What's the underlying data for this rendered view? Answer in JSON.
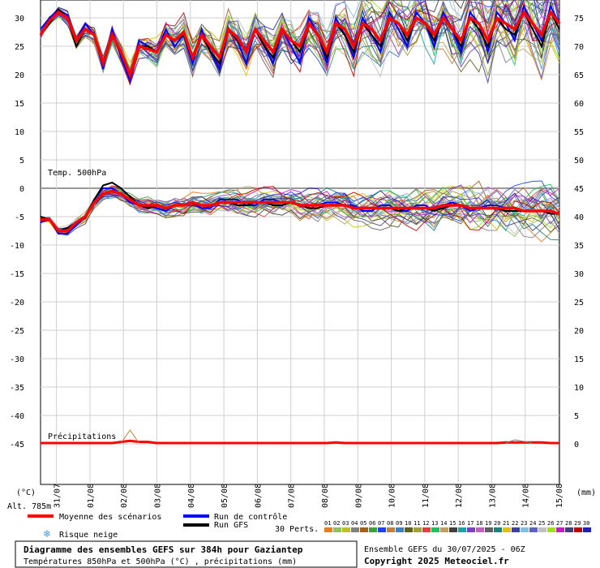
{
  "chart_data": {
    "type": "line",
    "left_axis": {
      "unit_label": "(°C)",
      "ticks": [
        30,
        25,
        20,
        15,
        10,
        5,
        0,
        -5,
        -10,
        -15,
        -20,
        -25,
        -30,
        -35,
        -40,
        -45
      ],
      "range": [
        -50,
        33
      ]
    },
    "right_axis": {
      "unit_label": "(mm)",
      "ticks": [
        75,
        70,
        65,
        60,
        55,
        50,
        45,
        40,
        35,
        30,
        25,
        20,
        15,
        10,
        5,
        0
      ]
    },
    "x_ticks": [
      "31/07",
      "01/08",
      "02/08",
      "03/08",
      "04/08",
      "05/08",
      "06/08",
      "07/08",
      "08/08",
      "09/08",
      "10/08",
      "11/08",
      "12/08",
      "13/08",
      "14/08",
      "15/08"
    ],
    "panel_labels": {
      "temp500": "Temp. 500hPa",
      "precip": "Précipitations"
    },
    "altitude": "Alt. 785m",
    "series": [
      {
        "name": "Moyenne des scénarios",
        "color": "#ff0000",
        "t850": [
          27,
          29.5,
          31,
          30,
          26,
          28,
          27,
          22,
          27,
          24,
          20,
          25,
          24.5,
          24,
          27,
          26,
          27.5,
          23,
          27,
          25,
          23,
          28,
          26.5,
          24,
          28,
          26,
          24,
          28,
          26,
          25,
          29,
          27,
          24,
          29,
          28,
          25,
          29,
          28,
          26,
          30,
          29,
          27,
          30,
          29,
          27,
          30,
          28,
          26,
          30,
          29,
          26,
          30,
          29,
          28,
          31,
          29,
          27,
          31,
          29
        ],
        "t500": [
          -5.5,
          -5.5,
          -7.5,
          -7.5,
          -6,
          -5,
          -2.5,
          -1,
          -0.5,
          -1,
          -2,
          -3,
          -3,
          -3,
          -3.5,
          -3,
          -3,
          -2.5,
          -3,
          -3,
          -2.5,
          -2.5,
          -2.5,
          -2.5,
          -2.5,
          -2.5,
          -2.5,
          -2.5,
          -2.5,
          -3,
          -3,
          -3,
          -3,
          -3,
          -3,
          -3.5,
          -3.5,
          -3.5,
          -3.5,
          -3.5,
          -3.5,
          -3.5,
          -3.5,
          -3.5,
          -3.5,
          -3,
          -3,
          -3,
          -3.5,
          -3.5,
          -3.5,
          -3.5,
          -3.5,
          -3.5,
          -4,
          -4,
          -4,
          -4,
          -4.5
        ],
        "precip": [
          0,
          0,
          0,
          0,
          0,
          0,
          0,
          0,
          0,
          0.2,
          0.4,
          0.2,
          0.2,
          0,
          0,
          0,
          0,
          0,
          0,
          0,
          0,
          0,
          0,
          0,
          0,
          0,
          0,
          0,
          0,
          0,
          0,
          0,
          0,
          0.1,
          0,
          0,
          0,
          0,
          0,
          0,
          0,
          0,
          0,
          0,
          0,
          0,
          0,
          0,
          0,
          0,
          0,
          0,
          0.1,
          0.1,
          0.1,
          0.1,
          0.1,
          0,
          0
        ]
      },
      {
        "name": "Run de contrôle",
        "color": "#0000ff",
        "t850": [
          28,
          30,
          31.5,
          30.5,
          26,
          29,
          27,
          21,
          28,
          23,
          19,
          26,
          25,
          24,
          28,
          25,
          27,
          22,
          28,
          24,
          21,
          28,
          26,
          22,
          28,
          25,
          22,
          28,
          25,
          22,
          30,
          27,
          22,
          30,
          27,
          23,
          30,
          27,
          24,
          31,
          28,
          25,
          31,
          29,
          25,
          31,
          28,
          24,
          31,
          29,
          24,
          31,
          29,
          26,
          32,
          29,
          26,
          32,
          29
        ],
        "t500": [
          -6,
          -5.5,
          -8,
          -8,
          -6.5,
          -5,
          -2,
          0,
          0,
          -1,
          -2.5,
          -3,
          -3,
          -3.5,
          -4,
          -3,
          -3,
          -2.5,
          -3.5,
          -3.5,
          -2,
          -2,
          -2,
          -3,
          -3,
          -2,
          -2,
          -2.5,
          -2.5,
          -3,
          -3,
          -3,
          -2.5,
          -2.5,
          -3,
          -3,
          -4,
          -4,
          -3,
          -3,
          -4,
          -4,
          -3,
          -3,
          -4,
          -3,
          -2.5,
          -3,
          -4,
          -3.5,
          -3,
          -3,
          -3.5,
          -3.5,
          -4,
          -4,
          -4,
          -4,
          -4.5
        ]
      },
      {
        "name": "Run GFS",
        "color": "#000000",
        "t850": [
          27,
          29,
          31.5,
          30,
          25,
          28,
          27,
          22,
          27,
          24,
          20,
          25,
          25,
          24,
          27,
          26,
          27,
          23,
          27,
          24,
          22,
          28,
          26,
          24,
          28,
          25,
          23,
          28,
          26,
          24,
          29,
          27,
          23,
          29,
          27,
          24,
          29,
          27,
          25,
          30,
          29,
          26,
          30,
          29,
          26,
          30,
          28,
          25,
          30,
          28,
          25,
          30,
          28,
          27,
          31,
          28,
          25,
          31,
          28
        ],
        "t500": [
          -5,
          -5.5,
          -7.5,
          -7,
          -6,
          -5,
          -2,
          0.5,
          1,
          0,
          -1.5,
          -3,
          -3.5,
          -3,
          -3.5,
          -3,
          -3,
          -2.5,
          -3,
          -3,
          -2.5,
          -2.5,
          -3,
          -3,
          -2.5,
          -2.5,
          -3,
          -3,
          -2.5,
          -3,
          -3.5,
          -3.5,
          -3,
          -3,
          -3,
          -3.5,
          -3.5,
          -3.5,
          -3.5,
          -3.5,
          -4,
          -3.5,
          -3.5,
          -3.5,
          -4,
          -3.5,
          -3,
          -3,
          -3.5,
          -3.5,
          -3.5,
          -3.5,
          -4,
          -4,
          -4,
          -4,
          -4,
          -4.5,
          -4.5
        ]
      }
    ],
    "ensemble_count_label": "30 Perts.",
    "member_labels": [
      "01",
      "02",
      "03",
      "04",
      "05",
      "06",
      "07",
      "08",
      "09",
      "10",
      "11",
      "12",
      "13",
      "14",
      "15",
      "16",
      "17",
      "18",
      "19",
      "20",
      "21",
      "22",
      "23",
      "24",
      "25",
      "26",
      "27",
      "28",
      "29",
      "30"
    ],
    "member_colors": [
      "#e08020",
      "#90c060",
      "#c0c020",
      "#808080",
      "#a06020",
      "#40a040",
      "#2040ff",
      "#c08040",
      "#4080c0",
      "#606020",
      "#a0a040",
      "#e04040",
      "#20c060",
      "#c0a060",
      "#404040",
      "#20a0a0",
      "#8040c0",
      "#c060c0",
      "#606060",
      "#208080",
      "#e0c000",
      "#4040a0",
      "#80c0e0",
      "#6060c0",
      "#c0c0c0",
      "#a0e020",
      "#c020c0",
      "#404080",
      "#c00000",
      "#2020c0"
    ]
  },
  "legend": {
    "mean": "Moyenne des scénarios",
    "control": "Run de contrôle",
    "gfs": "Run GFS",
    "snow": "Risque neige"
  },
  "footer": {
    "title": "Diagramme des ensembles GEFS sur 384h pour Gaziantep",
    "subtitle": "Températures 850hPa et 500hPa (°C) , précipitations (mm)",
    "run": "Ensemble GEFS du 30/07/2025 - 06Z",
    "copyright": "Copyright 2025 Meteociel.fr"
  }
}
